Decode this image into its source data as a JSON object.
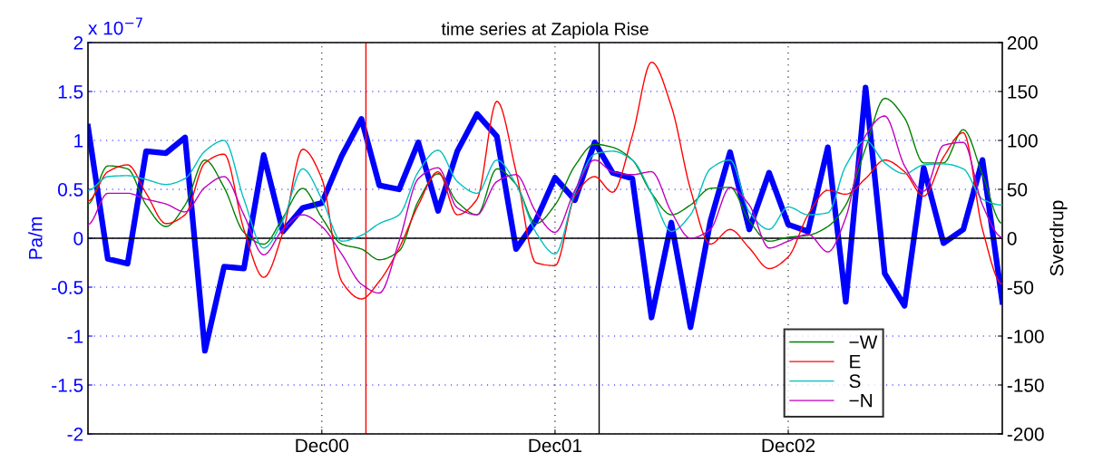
{
  "chart_data": {
    "type": "line",
    "title": "time series at Zapiola Rise",
    "ylabel": "Pa/m",
    "y2label": "Sverdrup",
    "annotations": [
      "x 10$^{−7}$"
    ],
    "x": [
      "1999-12",
      "2000-01",
      "2000-02",
      "2000-03",
      "2000-04",
      "2000-05",
      "2000-06",
      "2000-07",
      "2000-08",
      "2000-09",
      "2000-10",
      "2000-11",
      "2000-12",
      "2001-01",
      "2001-02",
      "2001-03",
      "2001-04",
      "2001-05",
      "2001-06",
      "2001-07",
      "2001-08",
      "2001-09",
      "2001-10",
      "2001-11",
      "2001-12",
      "2002-01",
      "2002-02",
      "2002-03",
      "2002-04",
      "2002-05",
      "2002-06",
      "2002-07",
      "2002-08",
      "2002-09",
      "2002-10",
      "2002-11",
      "2002-12",
      "2003-01",
      "2003-02",
      "2003-03",
      "2003-04",
      "2003-05",
      "2003-06",
      "2003-07",
      "2003-08",
      "2003-09",
      "2003-10",
      "2003-11"
    ],
    "series": [
      {
        "name": "−W",
        "color": "#008000",
        "values": [
          0.35,
          0.74,
          0.71,
          0.34,
          0.12,
          0.34,
          0.8,
          0.52,
          0.06,
          -0.06,
          0.21,
          0.51,
          0.21,
          -0.06,
          -0.11,
          -0.22,
          -0.13,
          0.38,
          0.66,
          0.37,
          0.24,
          0.71,
          0.55,
          0.15,
          0.34,
          0.74,
          0.96,
          0.93,
          0.8,
          0.46,
          0.24,
          0.34,
          0.51,
          0.52,
          0.18,
          -0.03,
          0.01,
          0.03,
          0.12,
          0.34,
          0.92,
          1.43,
          1.23,
          0.77,
          0.77,
          1.11,
          0.65,
          0.15
        ]
      },
      {
        "name": "E",
        "color": "#ff0000",
        "values": [
          0.38,
          0.68,
          0.75,
          0.46,
          0.15,
          0.24,
          0.77,
          0.86,
          0.09,
          -0.4,
          0.06,
          0.91,
          0.61,
          -0.44,
          -0.62,
          -0.44,
          -0.1,
          0.34,
          0.68,
          0.24,
          0.4,
          1.4,
          0.68,
          -0.25,
          -0.28,
          0.43,
          0.63,
          0.47,
          1.05,
          1.8,
          1.35,
          0.5,
          -0.06,
          0.09,
          -0.1,
          -0.31,
          -0.19,
          0.24,
          0.49,
          0.45,
          0.61,
          0.8,
          0.68,
          0.43,
          0.83,
          1.08,
          0.09,
          -0.47
        ]
      },
      {
        "name": "S",
        "color": "#00bfbf",
        "values": [
          0.49,
          0.63,
          0.64,
          0.6,
          0.55,
          0.61,
          0.89,
          1.0,
          0.4,
          -0.1,
          0.18,
          0.71,
          0.4,
          -0.03,
          0.03,
          0.15,
          0.24,
          0.68,
          0.9,
          0.58,
          0.46,
          0.8,
          0.55,
          0.06,
          -0.16,
          0.46,
          0.86,
          0.89,
          0.8,
          0.46,
          0.07,
          0.24,
          0.71,
          0.8,
          0.27,
          0.09,
          0.32,
          0.24,
          0.26,
          0.74,
          1.0,
          0.77,
          0.66,
          0.75,
          0.76,
          0.71,
          0.4,
          0.34
        ]
      },
      {
        "name": "−N",
        "color": "#bf00bf",
        "values": [
          0.14,
          0.46,
          0.46,
          0.4,
          0.35,
          0.27,
          0.52,
          0.63,
          0.24,
          -0.17,
          0.09,
          0.24,
          0.12,
          -0.16,
          -0.47,
          -0.56,
          -0.03,
          0.61,
          0.72,
          0.31,
          0.24,
          0.58,
          0.65,
          0.27,
          0.06,
          0.49,
          0.8,
          0.68,
          0.65,
          0.68,
          0.27,
          0.0,
          0.09,
          0.52,
          0.34,
          -0.1,
          -0.03,
          0.04,
          -0.14,
          0.21,
          1.05,
          1.25,
          0.74,
          0.48,
          0.95,
          0.98,
          0.34,
          0.01
        ]
      },
      {
        "color": "#0000ff",
        "axis": "y2",
        "values": [
          114,
          -21,
          -26,
          89,
          87,
          103,
          -115,
          -29,
          -31,
          85,
          7,
          31,
          36,
          84,
          122,
          54,
          50,
          98,
          28,
          89,
          127,
          104,
          -11,
          18,
          62,
          39,
          98,
          67,
          61,
          -81,
          16,
          -91,
          17,
          88,
          9,
          67,
          14,
          7,
          93,
          -65,
          154,
          -36,
          -69,
          72,
          -5,
          9,
          80,
          -65
        ]
      }
    ],
    "xlim": [
      "1999-12-01",
      "2003-11-01"
    ],
    "xticks": [
      {
        "value": "2000-12-01",
        "label": "Dec00"
      },
      {
        "value": "2001-12-01",
        "label": "Dec01"
      },
      {
        "value": "2002-12-01",
        "label": "Dec02"
      }
    ],
    "ylim": [
      -2,
      2
    ],
    "yticks": [
      -2,
      -1.5,
      -1,
      -0.5,
      0,
      0.5,
      1,
      1.5,
      2
    ],
    "y2lim": [
      -200,
      200
    ],
    "y2ticks": [
      -200,
      -150,
      -100,
      -50,
      0,
      50,
      100,
      150,
      200
    ],
    "ref_lines": [
      {
        "axis": "y",
        "value": 0,
        "color": "#000000"
      },
      {
        "axis": "x",
        "value": "2001-02-08",
        "color": "#ff0000"
      },
      {
        "axis": "x",
        "value": "2002-02-08",
        "color": "#000000"
      }
    ],
    "grid": true,
    "legend": "bottom right"
  }
}
